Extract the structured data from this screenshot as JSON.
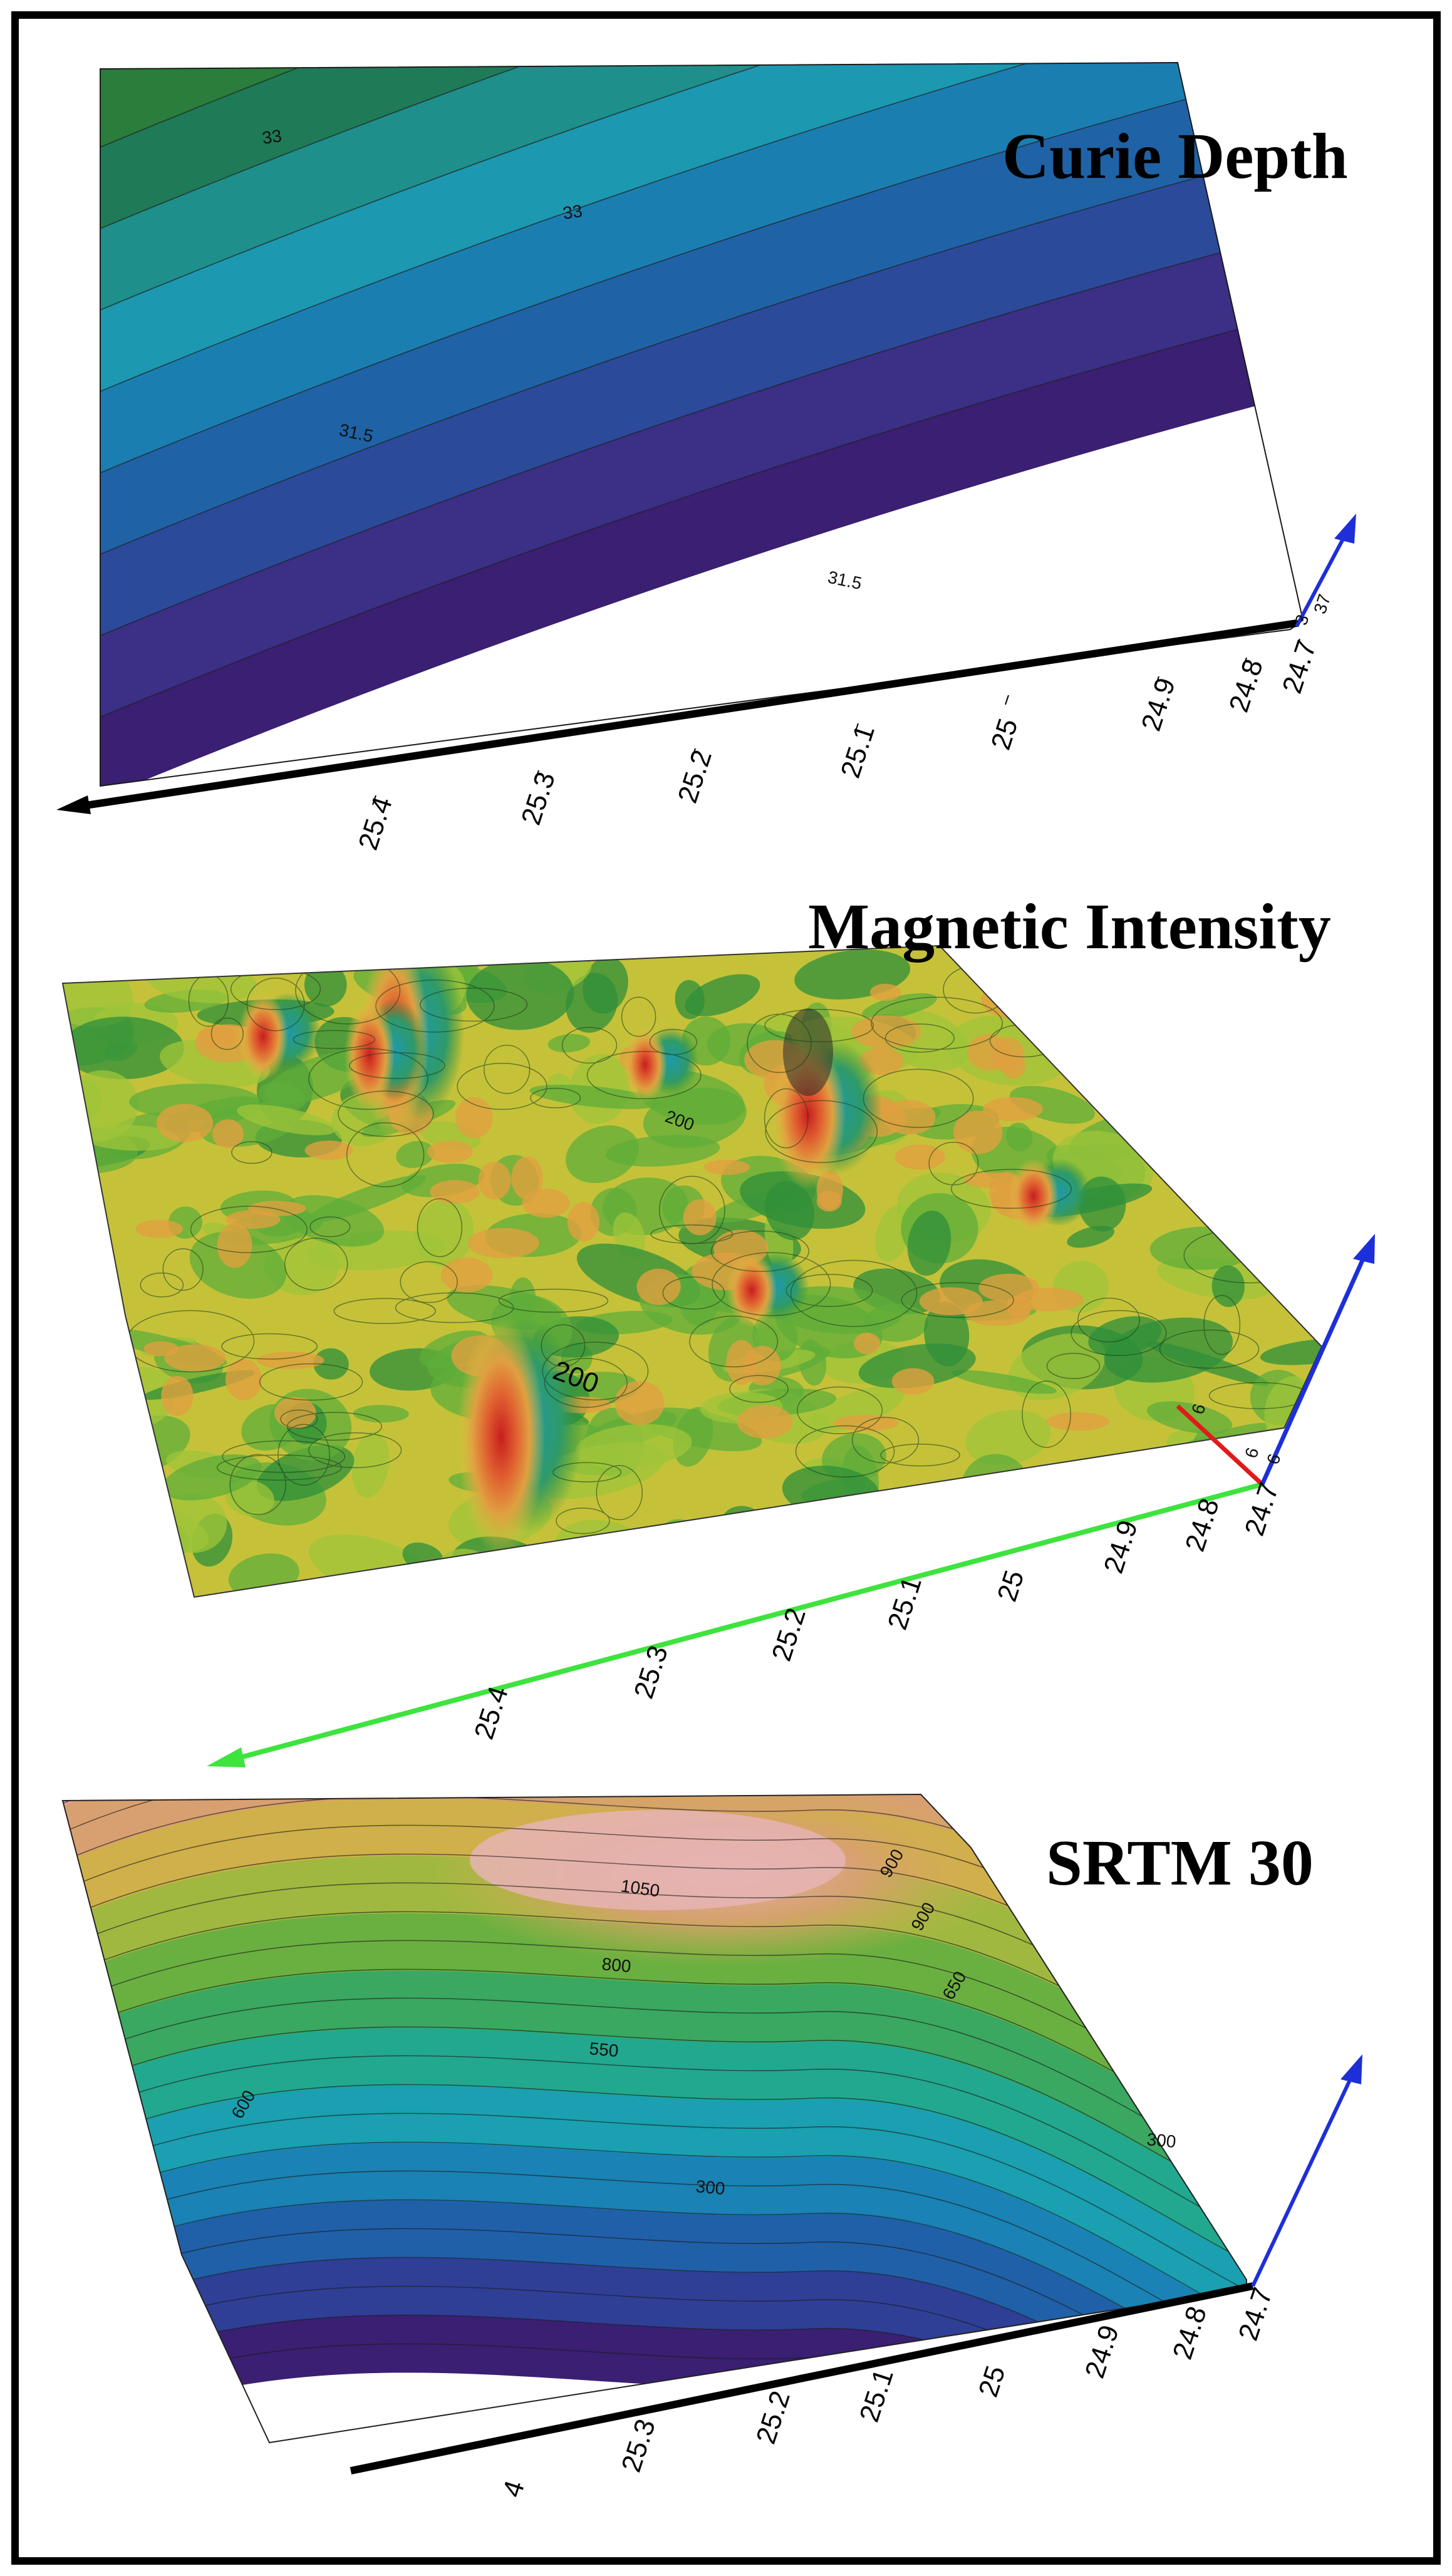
{
  "panels": [
    {
      "title": "Curie Depth",
      "axis_ticks": [
        "25.4",
        "25.3",
        "25.2",
        "25.1",
        "25",
        "24.9",
        "24.8",
        "24.7"
      ],
      "small_ticks": [
        "3",
        "37"
      ],
      "contour_labels": [
        "31.5",
        "31.5",
        "33",
        "33"
      ],
      "colors": [
        "#3a1f72",
        "#3b2f86",
        "#2b4b9a",
        "#1f63a6",
        "#1a7fb0",
        "#1c98b0",
        "#1e8f8a",
        "#1f7a57",
        "#2a7d3b",
        "#4d8f33",
        "#7aa23a",
        "#a8aa44",
        "#c8a656",
        "#d2957a",
        "#d58b8e"
      ]
    },
    {
      "title": "Magnetic Intensity",
      "axis_ticks": [
        "25.4",
        "25.3",
        "25.2",
        "25.1",
        "25",
        "24.9",
        "24.8",
        "24.7"
      ],
      "small_ticks": [
        "6",
        "6",
        "6"
      ],
      "contour_labels": [
        "200",
        "200"
      ],
      "colors": [
        "#c8c83a",
        "#9fc43a",
        "#5fae3a",
        "#2e8f3a",
        "#e0a040",
        "#e07a30",
        "#d93a2a",
        "#2aa8b8"
      ]
    },
    {
      "title": "SRTM 30",
      "axis_ticks": [
        "4",
        "25.3",
        "25.2",
        "25.1",
        "25",
        "24.9",
        "24.8",
        "24.7"
      ],
      "contour_labels": [
        "1050",
        "800",
        "550",
        "300",
        "300",
        "900",
        "900",
        "650",
        "600"
      ],
      "colors": [
        "#3a1f72",
        "#2f3f96",
        "#2060a8",
        "#1a82b4",
        "#1aa0b0",
        "#22a88e",
        "#3aa860",
        "#6ab040",
        "#a0b840",
        "#d0b04a",
        "#d8a070",
        "#e0a8a8"
      ]
    }
  ]
}
